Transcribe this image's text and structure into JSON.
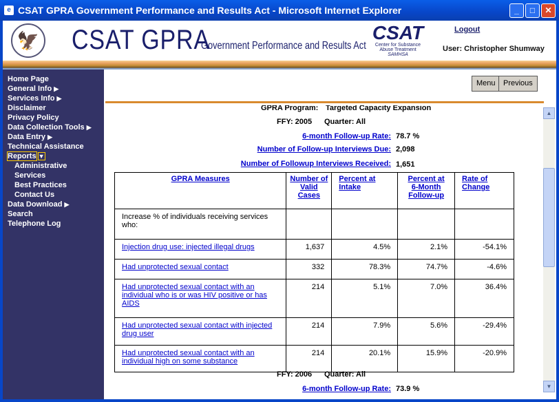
{
  "window": {
    "title": "CSAT GPRA Government Performance and Results Act - Microsoft Internet Explorer"
  },
  "header": {
    "brand": "CSAT GPRA",
    "subtitle": "Government Performance and Results Act",
    "csat_logo": "CSAT",
    "csat_line1": "Center for Substance",
    "csat_line2": "Abuse Treatment",
    "csat_line3": "SAMHSA",
    "logout": "Logout",
    "user": "User: Christopher Shumway"
  },
  "sidebar": {
    "items": [
      {
        "label": "Home Page",
        "arrow": ""
      },
      {
        "label": "General Info",
        "arrow": "▶"
      },
      {
        "label": "Services Info",
        "arrow": "▶"
      },
      {
        "label": "Disclaimer",
        "arrow": ""
      },
      {
        "label": "Privacy Policy",
        "arrow": ""
      },
      {
        "label": "Data Collection Tools",
        "arrow": "▶"
      },
      {
        "label": "Data Entry",
        "arrow": "▶"
      },
      {
        "label": "Technical Assistance",
        "arrow": ""
      },
      {
        "label": "Reports",
        "arrow": "▼"
      },
      {
        "label": "Administrative",
        "arrow": ""
      },
      {
        "label": "Services",
        "arrow": ""
      },
      {
        "label": "Best Practices",
        "arrow": ""
      },
      {
        "label": "Contact Us",
        "arrow": ""
      },
      {
        "label": "Data Download",
        "arrow": "▶"
      },
      {
        "label": "Search",
        "arrow": ""
      },
      {
        "label": "Telephone Log",
        "arrow": ""
      }
    ]
  },
  "toolbar": {
    "menu": "Menu",
    "previous": "Previous"
  },
  "report": {
    "program_label": "GPRA Program:",
    "program_value": "Targeted Capacity Expansion",
    "fy2005": {
      "ffy": "FFY: 2005",
      "quarter": "Quarter: All",
      "rate_label": "6-month Follow-up Rate:",
      "rate": "78.7 %",
      "due_label": "Number of  Follow-up Interviews Due:",
      "due": "2,098",
      "recv_label": "Number of Followup Interviews Received:",
      "recv": "1,651"
    },
    "columns": [
      "GPRA Measures",
      "Number of Valid Cases",
      "Percent at Intake",
      "Percent at 6-Month Follow-up",
      "Rate of Change"
    ],
    "intro": "Increase % of individuals receiving services who:",
    "rows": [
      {
        "measure": "Injection drug use: injected illegal drugs",
        "cases": "1,637",
        "intake": "4.5%",
        "followup": "2.1%",
        "change": "-54.1%"
      },
      {
        "measure": "Had unprotected sexual contact",
        "cases": "332",
        "intake": "78.3%",
        "followup": "74.7%",
        "change": "-4.6%"
      },
      {
        "measure": "Had unprotected sexual contact with an individual who is or was HIV positive or has AIDS",
        "cases": "214",
        "intake": "5.1%",
        "followup": "7.0%",
        "change": "36.4%"
      },
      {
        "measure": "Had unprotected sexual contact with injected drug user",
        "cases": "214",
        "intake": "7.9%",
        "followup": "5.6%",
        "change": "-29.4%"
      },
      {
        "measure": "Had unprotected sexual contact with an individual high on some substance",
        "cases": "214",
        "intake": "20.1%",
        "followup": "15.9%",
        "change": "-20.9%"
      }
    ],
    "fy2006": {
      "ffy": "FFY: 2006",
      "quarter": "Quarter: All",
      "rate_label": "6-month Follow-up Rate:",
      "rate": "73.9 %"
    }
  }
}
